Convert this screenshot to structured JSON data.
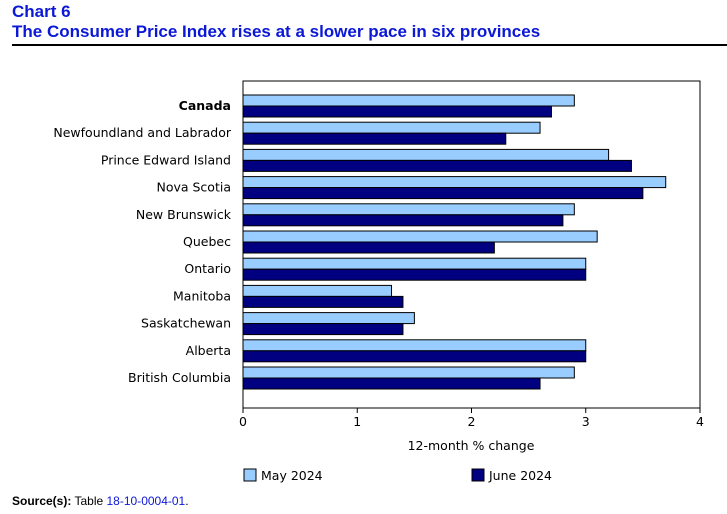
{
  "header": {
    "chart_number": "Chart 6",
    "title": "The Consumer Price Index rises at a slower pace in six provinces"
  },
  "source": {
    "label": "Source(s):",
    "prefix": "Table",
    "table_id": "18-10-0004-01",
    "suffix": "."
  },
  "colors": {
    "may": "#99ccff",
    "june": "#000080",
    "rule": "#000000"
  },
  "chart_data": {
    "type": "bar",
    "orientation": "horizontal",
    "categories": [
      "Canada",
      "Newfoundland and Labrador",
      "Prince Edward Island",
      "Nova Scotia",
      "New Brunswick",
      "Quebec",
      "Ontario",
      "Manitoba",
      "Saskatchewan",
      "Alberta",
      "British Columbia"
    ],
    "bold_categories": [
      "Canada"
    ],
    "series": [
      {
        "name": "May 2024",
        "values": [
          2.9,
          2.6,
          3.2,
          3.7,
          2.9,
          3.1,
          3.0,
          1.3,
          1.5,
          3.0,
          2.9
        ]
      },
      {
        "name": "June 2024",
        "values": [
          2.7,
          2.3,
          3.4,
          3.5,
          2.8,
          2.2,
          3.0,
          1.4,
          1.4,
          3.0,
          2.6
        ]
      }
    ],
    "xlabel": "12-month % change",
    "xlim": [
      0,
      4
    ],
    "xticks": [
      0,
      1,
      2,
      3,
      4
    ],
    "legend_position": "bottom"
  }
}
